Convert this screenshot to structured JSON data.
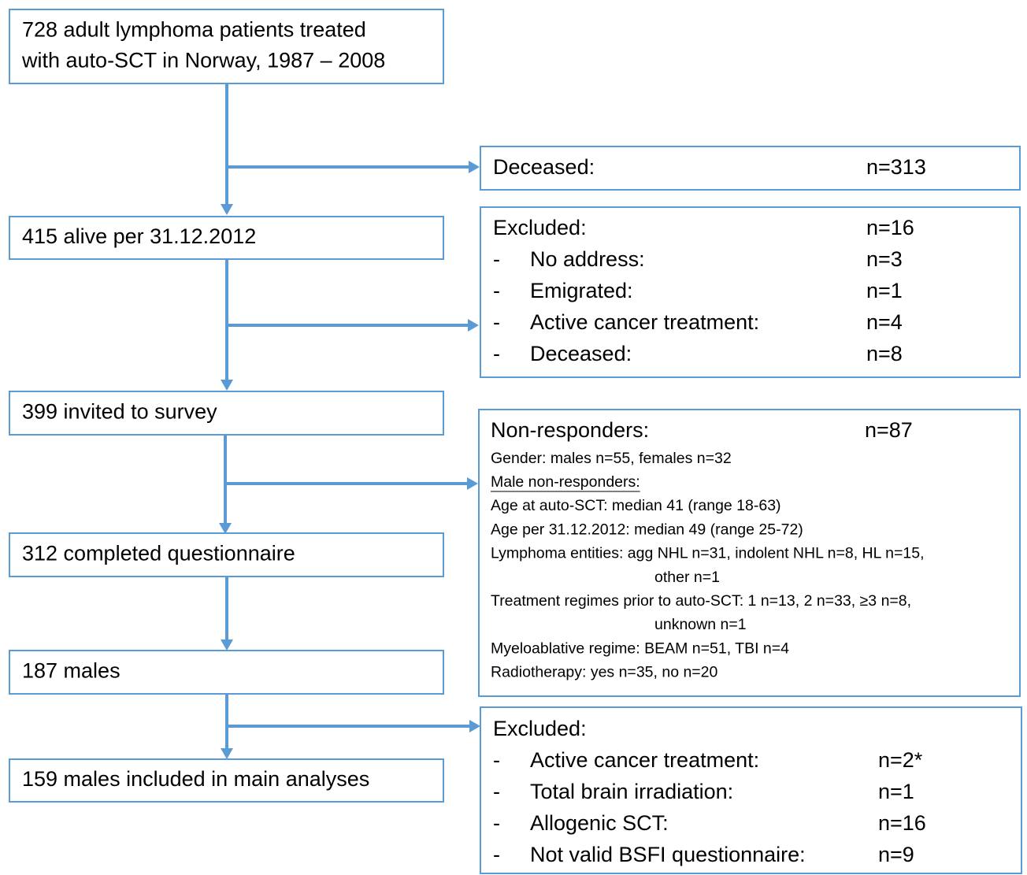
{
  "main_flow": [
    {
      "lines": [
        "728 adult lymphoma patients treated",
        "with auto-SCT in Norway, 1987 – 2008"
      ]
    },
    {
      "lines": [
        "415 alive per 31.12.2012"
      ]
    },
    {
      "lines": [
        "399 invited to survey"
      ]
    },
    {
      "lines": [
        "312 completed questionnaire"
      ]
    },
    {
      "lines": [
        "187 males"
      ]
    },
    {
      "lines": [
        "159 males included in main analyses"
      ]
    }
  ],
  "side_boxes": [
    {
      "title": "Deceased:",
      "count": "n=313"
    },
    {
      "title": "Excluded:",
      "count": "n=16",
      "items": [
        {
          "marker": "-",
          "label": "No address:",
          "count": "n=3"
        },
        {
          "marker": "-",
          "label": "Emigrated:",
          "count": "n=1"
        },
        {
          "marker": "-",
          "label": "Active cancer treatment:",
          "count": "n=4"
        },
        {
          "marker": "-",
          "label": "Deceased:",
          "count": "n=8"
        }
      ]
    },
    {
      "title": "Non-responders:",
      "count": "n=87",
      "gender": "Gender: males n=55, females n=32",
      "subheading": "Male non-responders:",
      "characteristics": [
        {
          "lines": [
            "Age at auto-SCT: median 41 (range 18-63)"
          ]
        },
        {
          "lines": [
            "Age per 31.12.2012: median 49 (range 25-72)"
          ]
        },
        {
          "lines": [
            "Lymphoma entities: agg NHL n=31, indolent NHL n=8, HL n=15,",
            "other n=1"
          ]
        },
        {
          "lines": [
            "Treatment regimes prior to auto-SCT: 1 n=13, 2 n=33, ≥3 n=8,",
            "unknown n=1"
          ]
        },
        {
          "lines": [
            "Myeloablative regime: BEAM n=51, TBI n=4"
          ]
        },
        {
          "lines": [
            "Radiotherapy: yes n=35, no n=20"
          ]
        }
      ]
    },
    {
      "title": "Excluded:",
      "items": [
        {
          "marker": "-",
          "label": "Active cancer treatment:",
          "count": "n=2*"
        },
        {
          "marker": "-",
          "label": "Total brain irradiation:",
          "count": "n=1"
        },
        {
          "marker": "-",
          "label": "Allogenic SCT:",
          "count": "n=16"
        },
        {
          "marker": "-",
          "label": "Not valid BSFI questionnaire:",
          "count": "n=9"
        }
      ]
    }
  ]
}
